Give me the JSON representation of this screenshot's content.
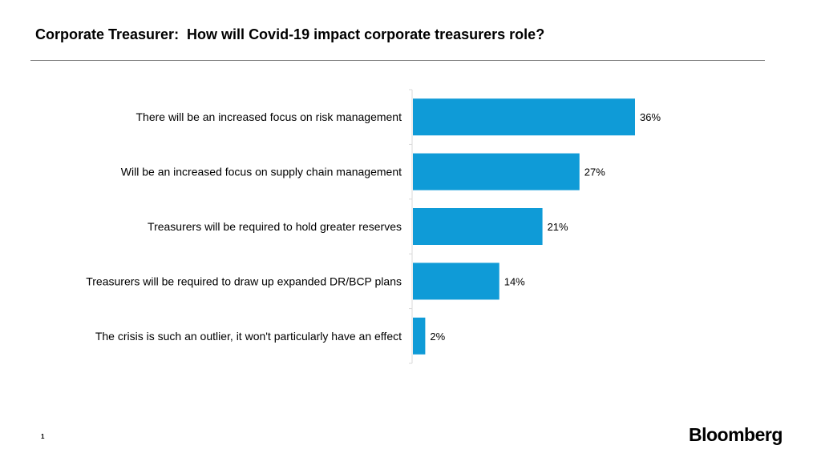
{
  "slide": {
    "title": "Corporate Treasurer:  How will Covid-19 impact corporate treasurers role?",
    "page_number": "1",
    "brand": "Bloomberg",
    "accent_color": "#0f9bd7"
  },
  "chart_data": {
    "type": "bar",
    "orientation": "horizontal",
    "title": "Corporate Treasurer:  How will Covid-19 impact corporate treasurers role?",
    "categories": [
      "There will be an increased focus on risk management",
      "Will be an increased focus on supply chain management",
      "Treasurers will be required to hold greater reserves",
      "Treasurers will be required to draw up expanded DR/BCP plans",
      "The crisis is such an outlier, it won't particularly have an effect"
    ],
    "values": [
      36,
      27,
      21,
      14,
      2
    ],
    "value_labels": [
      "36%",
      "27%",
      "21%",
      "14%",
      "2%"
    ],
    "unit": "%",
    "xlim": [
      0,
      50
    ],
    "grid": false,
    "legend": "none",
    "bar_color": "#0f9bd7"
  }
}
